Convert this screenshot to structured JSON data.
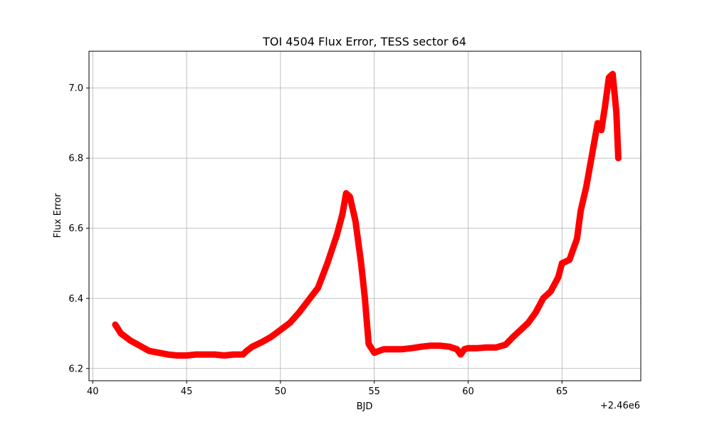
{
  "chart_data": {
    "type": "scatter",
    "title": "TOI 4504 Flux Error, TESS sector 64",
    "xlabel": "BJD",
    "ylabel": "Flux Error",
    "x_offset_label": "+2.46e6",
    "xlim": [
      39.8,
      69.2
    ],
    "ylim": [
      6.165,
      7.105
    ],
    "xticks": [
      40,
      45,
      50,
      55,
      60,
      65
    ],
    "xtick_labels": [
      "40",
      "45",
      "50",
      "55",
      "60",
      "65"
    ],
    "yticks": [
      6.2,
      6.4,
      6.6,
      6.8,
      7.0
    ],
    "ytick_labels": [
      "6.2",
      "6.4",
      "6.6",
      "6.8",
      "7.0"
    ],
    "grid": true,
    "marker_color": "#ff0000",
    "series": [
      {
        "name": "Flux Error",
        "x": [
          41.2,
          41.5,
          42.0,
          42.5,
          43.0,
          43.5,
          44.0,
          44.5,
          45.0,
          45.5,
          46.0,
          46.5,
          47.0,
          47.5,
          48.0,
          48.2,
          48.5,
          49.0,
          49.5,
          50.0,
          50.5,
          51.0,
          51.5,
          52.0,
          52.5,
          53.0,
          53.3,
          53.5,
          53.7,
          54.0,
          54.3,
          54.5,
          54.7,
          55.0,
          55.5,
          56.0,
          56.5,
          57.0,
          57.5,
          58.0,
          58.5,
          59.0,
          59.4,
          59.6,
          59.8,
          60.0,
          60.5,
          61.0,
          61.5,
          62.0,
          62.4,
          62.8,
          63.2,
          63.6,
          64.0,
          64.4,
          64.8,
          65.0,
          65.4,
          65.8,
          66.0,
          66.3,
          66.6,
          66.9,
          67.1,
          67.3,
          67.5,
          67.7,
          67.9,
          68.0
        ],
        "y": [
          6.325,
          6.3,
          6.28,
          6.265,
          6.25,
          6.245,
          6.24,
          6.237,
          6.237,
          6.24,
          6.24,
          6.24,
          6.237,
          6.24,
          6.24,
          6.25,
          6.262,
          6.275,
          6.29,
          6.31,
          6.33,
          6.36,
          6.395,
          6.43,
          6.5,
          6.58,
          6.64,
          6.7,
          6.69,
          6.62,
          6.5,
          6.4,
          6.27,
          6.245,
          6.255,
          6.255,
          6.255,
          6.258,
          6.262,
          6.265,
          6.265,
          6.262,
          6.255,
          6.24,
          6.255,
          6.258,
          6.258,
          6.26,
          6.26,
          6.268,
          6.29,
          6.31,
          6.33,
          6.36,
          6.4,
          6.42,
          6.46,
          6.5,
          6.51,
          6.57,
          6.65,
          6.72,
          6.81,
          6.9,
          6.88,
          6.95,
          7.03,
          7.04,
          6.93,
          6.8
        ]
      }
    ]
  }
}
